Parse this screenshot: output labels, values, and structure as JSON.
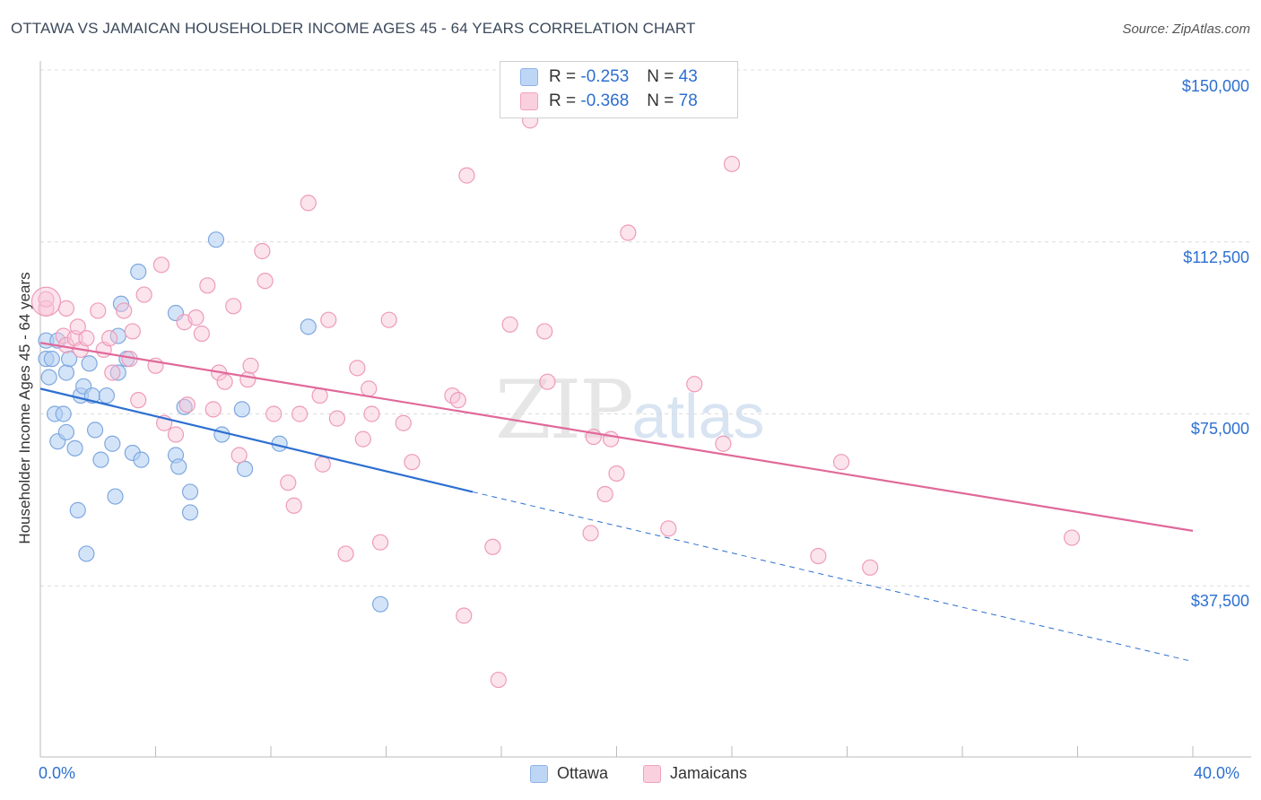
{
  "title": "OTTAWA VS JAMAICAN HOUSEHOLDER INCOME AGES 45 - 64 YEARS CORRELATION CHART",
  "source": "Source: ZipAtlas.com",
  "legend": {
    "r_label": "R = ",
    "n_label": "N = ",
    "ottawa": {
      "r": "-0.253",
      "n": "43"
    },
    "jamaicans": {
      "r": "-0.368",
      "n": "78"
    }
  },
  "bottom_legend": {
    "ottawa": "Ottawa",
    "jamaicans": "Jamaicans"
  },
  "watermark": {
    "zip": "ZIP",
    "atlas": "atlas"
  },
  "chart_data": {
    "type": "scatter",
    "xlabel": "",
    "ylabel": "Householder Income Ages 45 - 64 years",
    "xlim": [
      0,
      40
    ],
    "ylim": [
      0,
      155000
    ],
    "x_tick_labels": [
      "0.0%",
      "40.0%"
    ],
    "y_ticks": [
      37500,
      75000,
      112500,
      150000
    ],
    "y_tick_labels": [
      "$37,500",
      "$75,000",
      "$112,500",
      "$150,000"
    ],
    "grid": true,
    "legend_position": "top-center",
    "colors": {
      "ottawa": "#a9c8ee",
      "ottawa_line": "#2d6fd1",
      "jamaicans": "#f6b8cc",
      "jamaicans_line": "#e0699a"
    },
    "series": [
      {
        "name": "Ottawa",
        "points": [
          [
            0.2,
            91000
          ],
          [
            0.2,
            87000
          ],
          [
            0.3,
            83000
          ],
          [
            0.4,
            87000
          ],
          [
            0.5,
            75000
          ],
          [
            0.6,
            91000
          ],
          [
            0.6,
            69000
          ],
          [
            0.8,
            75000
          ],
          [
            0.9,
            84000
          ],
          [
            0.9,
            71000
          ],
          [
            1.0,
            87000
          ],
          [
            1.2,
            67500
          ],
          [
            1.3,
            54000
          ],
          [
            1.4,
            79000
          ],
          [
            1.5,
            81000
          ],
          [
            1.6,
            44500
          ],
          [
            1.7,
            86000
          ],
          [
            1.8,
            79000
          ],
          [
            1.9,
            71500
          ],
          [
            2.1,
            65000
          ],
          [
            2.3,
            79000
          ],
          [
            2.5,
            68500
          ],
          [
            2.6,
            57000
          ],
          [
            2.7,
            92000
          ],
          [
            2.7,
            84000
          ],
          [
            2.8,
            99000
          ],
          [
            3.0,
            87000
          ],
          [
            3.2,
            66500
          ],
          [
            3.4,
            106000
          ],
          [
            3.5,
            65000
          ],
          [
            4.7,
            97000
          ],
          [
            4.7,
            66000
          ],
          [
            4.8,
            63500
          ],
          [
            5.0,
            76500
          ],
          [
            5.2,
            58000
          ],
          [
            5.2,
            53500
          ],
          [
            6.1,
            113000
          ],
          [
            6.3,
            70500
          ],
          [
            7.0,
            76000
          ],
          [
            7.1,
            63000
          ],
          [
            8.3,
            68500
          ],
          [
            9.3,
            94000
          ],
          [
            11.8,
            33500
          ]
        ]
      },
      {
        "name": "Jamaicans",
        "points": [
          [
            0.2,
            98000
          ],
          [
            0.2,
            100000
          ],
          [
            0.8,
            92000
          ],
          [
            0.9,
            90000
          ],
          [
            1.2,
            91500
          ],
          [
            1.3,
            94000
          ],
          [
            1.4,
            89000
          ],
          [
            1.6,
            91500
          ],
          [
            2.0,
            97500
          ],
          [
            2.2,
            89000
          ],
          [
            2.4,
            91500
          ],
          [
            2.5,
            84000
          ],
          [
            2.9,
            97500
          ],
          [
            3.1,
            87000
          ],
          [
            3.4,
            78000
          ],
          [
            3.6,
            101000
          ],
          [
            4.0,
            85500
          ],
          [
            4.2,
            107500
          ],
          [
            4.3,
            73000
          ],
          [
            4.7,
            70500
          ],
          [
            5.0,
            95000
          ],
          [
            5.1,
            77000
          ],
          [
            5.4,
            96000
          ],
          [
            5.6,
            92500
          ],
          [
            5.8,
            103000
          ],
          [
            6.0,
            76000
          ],
          [
            6.2,
            84000
          ],
          [
            6.7,
            98500
          ],
          [
            6.9,
            66000
          ],
          [
            7.2,
            82500
          ],
          [
            7.3,
            85500
          ],
          [
            7.7,
            110500
          ],
          [
            7.8,
            104000
          ],
          [
            8.1,
            75000
          ],
          [
            8.6,
            60000
          ],
          [
            8.8,
            55000
          ],
          [
            9.0,
            75000
          ],
          [
            9.3,
            121000
          ],
          [
            9.7,
            79000
          ],
          [
            9.8,
            64000
          ],
          [
            10.0,
            95500
          ],
          [
            10.3,
            74000
          ],
          [
            10.6,
            44500
          ],
          [
            11.0,
            85000
          ],
          [
            11.2,
            69500
          ],
          [
            11.4,
            80500
          ],
          [
            11.5,
            75000
          ],
          [
            11.8,
            47000
          ],
          [
            12.1,
            95500
          ],
          [
            12.6,
            73000
          ],
          [
            12.9,
            64500
          ],
          [
            14.3,
            79000
          ],
          [
            14.5,
            78000
          ],
          [
            14.7,
            31000
          ],
          [
            14.8,
            127000
          ],
          [
            15.7,
            46000
          ],
          [
            15.9,
            17000
          ],
          [
            16.3,
            94500
          ],
          [
            17.0,
            139000
          ],
          [
            17.5,
            93000
          ],
          [
            17.6,
            82000
          ],
          [
            19.1,
            49000
          ],
          [
            19.2,
            70000
          ],
          [
            19.6,
            57500
          ],
          [
            19.8,
            69500
          ],
          [
            20.0,
            62000
          ],
          [
            20.4,
            114500
          ],
          [
            21.8,
            50000
          ],
          [
            22.7,
            81500
          ],
          [
            23.7,
            68500
          ],
          [
            24.0,
            129500
          ],
          [
            27.0,
            44000
          ],
          [
            27.8,
            64500
          ],
          [
            28.8,
            41500
          ],
          [
            35.8,
            48000
          ],
          [
            0.9,
            98000
          ],
          [
            3.2,
            93000
          ],
          [
            6.4,
            82000
          ]
        ]
      }
    ],
    "trendlines": [
      {
        "name": "Ottawa",
        "x": [
          0,
          15
        ],
        "y": [
          80500,
          58000
        ],
        "dashed_extension_to": [
          40,
          21000
        ]
      },
      {
        "name": "Jamaicans",
        "x": [
          0,
          40
        ],
        "y": [
          90500,
          49500
        ]
      }
    ]
  }
}
